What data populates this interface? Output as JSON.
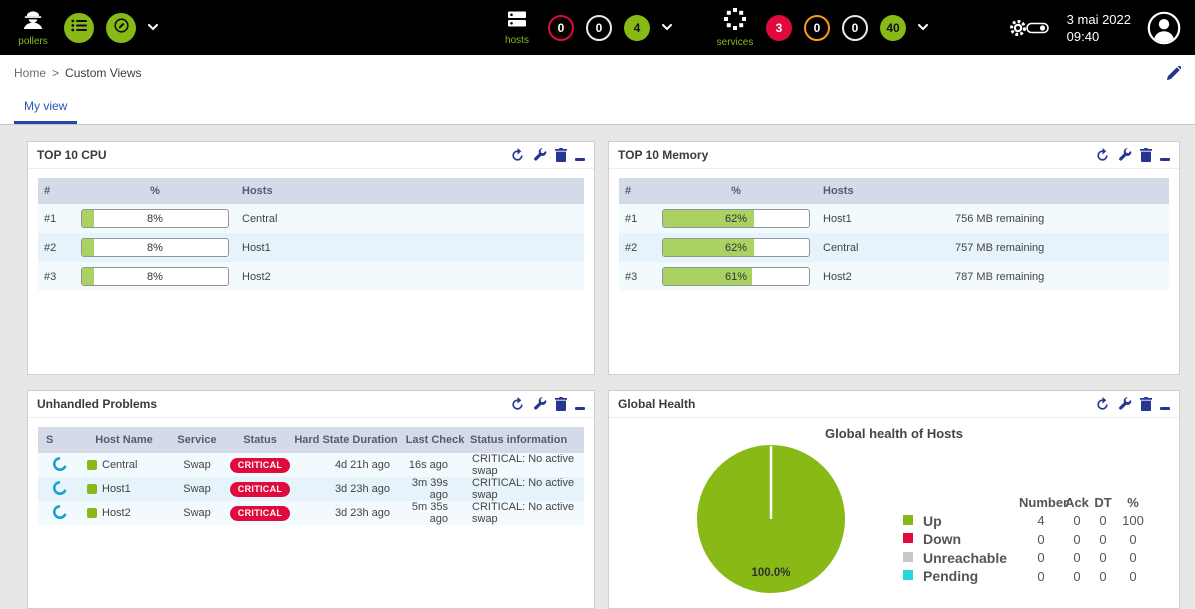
{
  "colors": {
    "green": "#88b917",
    "red": "#e00b3d",
    "orange": "#ff9a13",
    "navy": "#283593",
    "pending": "#2ad5de",
    "unreachable": "#c9c9c9"
  },
  "topbar": {
    "pollers": {
      "label": "pollers"
    },
    "hosts": {
      "label": "hosts",
      "badges": [
        {
          "value": "0",
          "state": "down"
        },
        {
          "value": "0",
          "state": "unreachable"
        },
        {
          "value": "4",
          "state": "up"
        }
      ]
    },
    "services": {
      "label": "services",
      "badges": [
        {
          "value": "3",
          "state": "critical"
        },
        {
          "value": "0",
          "state": "warning"
        },
        {
          "value": "0",
          "state": "unknown"
        },
        {
          "value": "40",
          "state": "ok"
        }
      ]
    },
    "clock": {
      "date": "3 mai 2022",
      "time": "09:40"
    }
  },
  "breadcrumb": {
    "home": "Home",
    "separator": ">",
    "current": "Custom Views"
  },
  "tabs": {
    "my_view": "My view"
  },
  "panels": {
    "cpu": {
      "title": "TOP 10 CPU",
      "columns": [
        "#",
        "%",
        "Hosts"
      ],
      "rows": [
        {
          "rank": "#1",
          "pct_label": "8%",
          "pct_value": 8,
          "host": "Central"
        },
        {
          "rank": "#2",
          "pct_label": "8%",
          "pct_value": 8,
          "host": "Host1"
        },
        {
          "rank": "#3",
          "pct_label": "8%",
          "pct_value": 8,
          "host": "Host2"
        }
      ]
    },
    "memory": {
      "title": "TOP 10 Memory",
      "columns": [
        "#",
        "%",
        "Hosts"
      ],
      "rows": [
        {
          "rank": "#1",
          "pct_label": "62%",
          "pct_value": 62,
          "host": "Host1",
          "remaining": "756 MB remaining"
        },
        {
          "rank": "#2",
          "pct_label": "62%",
          "pct_value": 62,
          "host": "Central",
          "remaining": "757 MB remaining"
        },
        {
          "rank": "#3",
          "pct_label": "61%",
          "pct_value": 61,
          "host": "Host2",
          "remaining": "787 MB remaining"
        }
      ]
    },
    "problems": {
      "title": "Unhandled Problems",
      "columns": [
        "S",
        "Host Name",
        "Service",
        "Status",
        "Hard State Duration",
        "Last Check",
        "Status information"
      ],
      "rows": [
        {
          "host": "Central",
          "service": "Swap",
          "status": "CRITICAL",
          "duration": "4d 21h ago",
          "last_check": "16s ago",
          "info": "CRITICAL: No active swap"
        },
        {
          "host": "Host1",
          "service": "Swap",
          "status": "CRITICAL",
          "duration": "3d 23h ago",
          "last_check": "3m 39s ago",
          "info": "CRITICAL: No active swap"
        },
        {
          "host": "Host2",
          "service": "Swap",
          "status": "CRITICAL",
          "duration": "3d 23h ago",
          "last_check": "5m 35s ago",
          "info": "CRITICAL: No active swap"
        }
      ]
    },
    "global_health": {
      "title": "Global Health",
      "chart_title": "Global health of Hosts",
      "pie_label": "100.0%",
      "pie_color": "#88b917",
      "legend_headers": [
        "Number",
        "Ack",
        "DT",
        "%"
      ],
      "legend": [
        {
          "label": "Up",
          "color": "#88b917",
          "number": "4",
          "ack": "0",
          "dt": "0",
          "pct": "100"
        },
        {
          "label": "Down",
          "color": "#e00b3d",
          "number": "0",
          "ack": "0",
          "dt": "0",
          "pct": "0"
        },
        {
          "label": "Unreachable",
          "color": "#c9c9c9",
          "number": "0",
          "ack": "0",
          "dt": "0",
          "pct": "0"
        },
        {
          "label": "Pending",
          "color": "#2ad5de",
          "number": "0",
          "ack": "0",
          "dt": "0",
          "pct": "0"
        }
      ]
    }
  }
}
